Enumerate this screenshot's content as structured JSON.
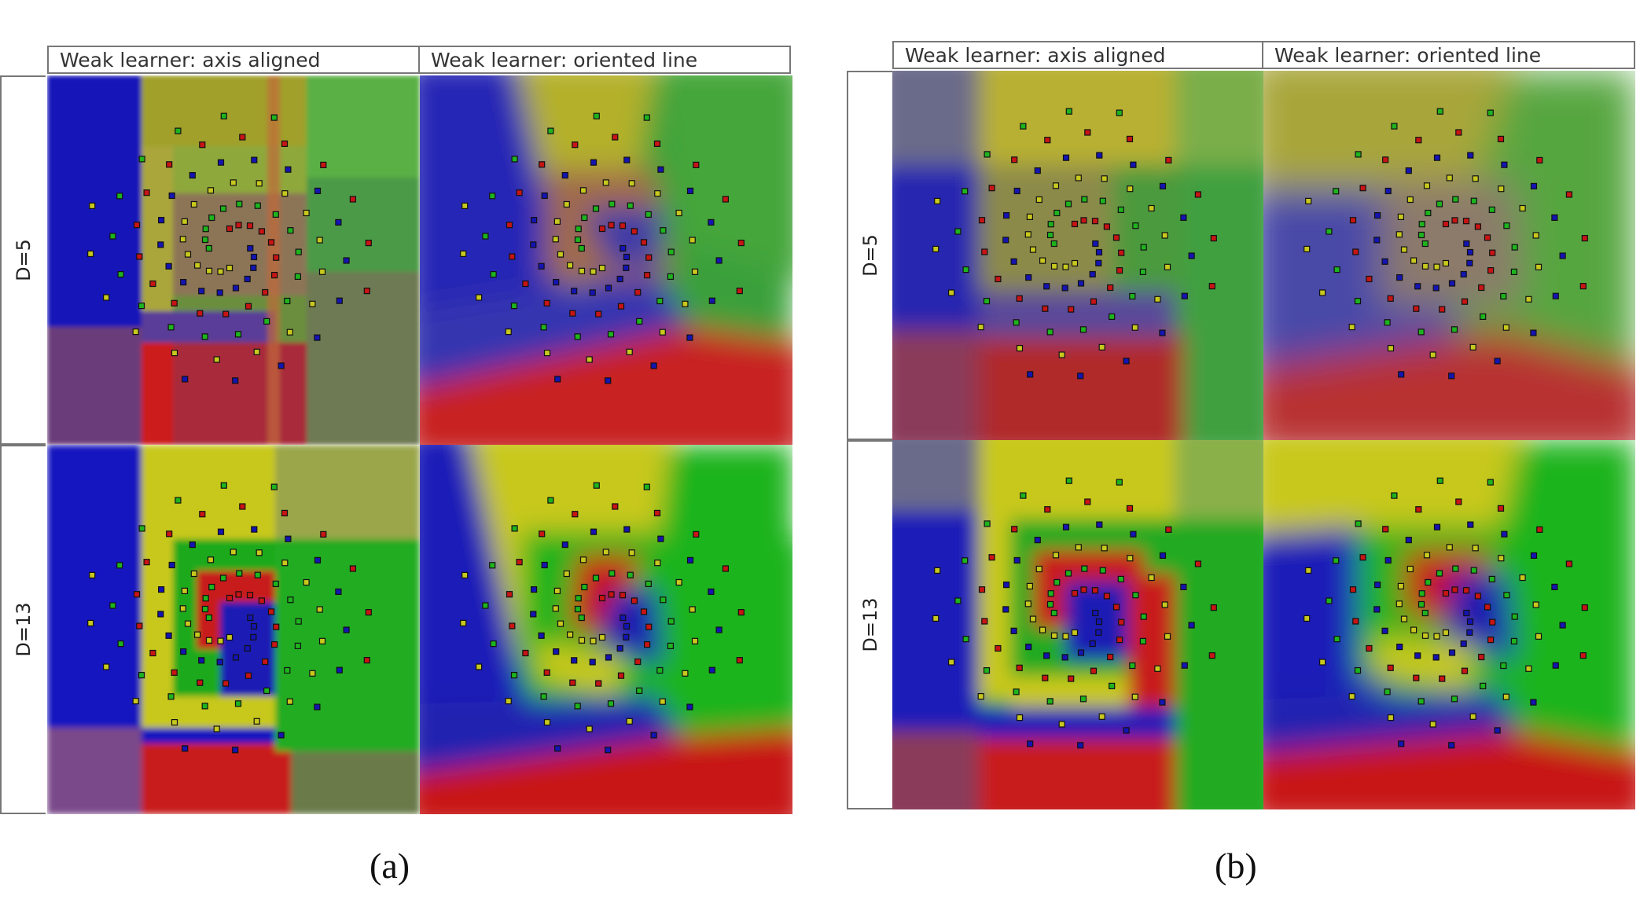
{
  "figures": [
    {
      "caption": "(a)",
      "columns": [
        "Weak learner: axis aligned",
        "Weak learner: oriented line"
      ],
      "rows": [
        "D=5",
        "D=13"
      ]
    },
    {
      "caption": "(b)",
      "columns": [
        "Weak learner: axis aligned",
        "Weak learner: oriented line"
      ],
      "rows": [
        "D=5",
        "D=13"
      ]
    }
  ],
  "colors": {
    "class_red": "#c81414",
    "class_yellow": "#c8c81e",
    "class_green": "#1eb41e",
    "class_blue": "#1414b4",
    "border": "#777777"
  }
}
